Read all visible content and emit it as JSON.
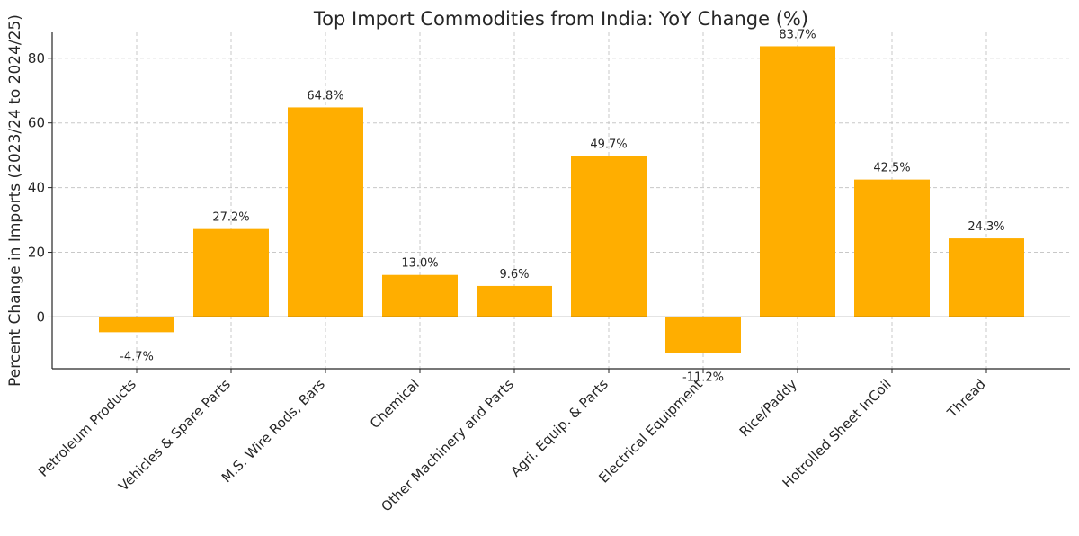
{
  "chart_data": {
    "type": "bar",
    "title": "Top Import Commodities from India: YoY Change (%)",
    "xlabel": "",
    "ylabel": "Percent Change in Imports (2023/24 to 2024/25)",
    "categories": [
      "Petroleum Products",
      "Vehicles & Spare Parts",
      "M.S. Wire Rods, Bars",
      "Chemical",
      "Other Machinery and Parts",
      "Agri. Equip. & Parts",
      "Electrical Equipment",
      "Rice/Paddy",
      "Hotrolled Sheet InCoil",
      "Thread"
    ],
    "values": [
      -4.7,
      27.2,
      64.8,
      13.0,
      9.6,
      49.7,
      -11.2,
      83.7,
      42.5,
      24.3
    ],
    "data_labels": [
      "-4.7%",
      "27.2%",
      "64.8%",
      "13.0%",
      "9.6%",
      "49.7%",
      "-11.2%",
      "83.7%",
      "42.5%",
      "24.3%"
    ],
    "yticks": [
      0,
      20,
      40,
      60,
      80
    ],
    "ylim": [
      -16,
      88
    ],
    "grid": true,
    "bar_color": "#ffae00",
    "zero_line": true
  }
}
